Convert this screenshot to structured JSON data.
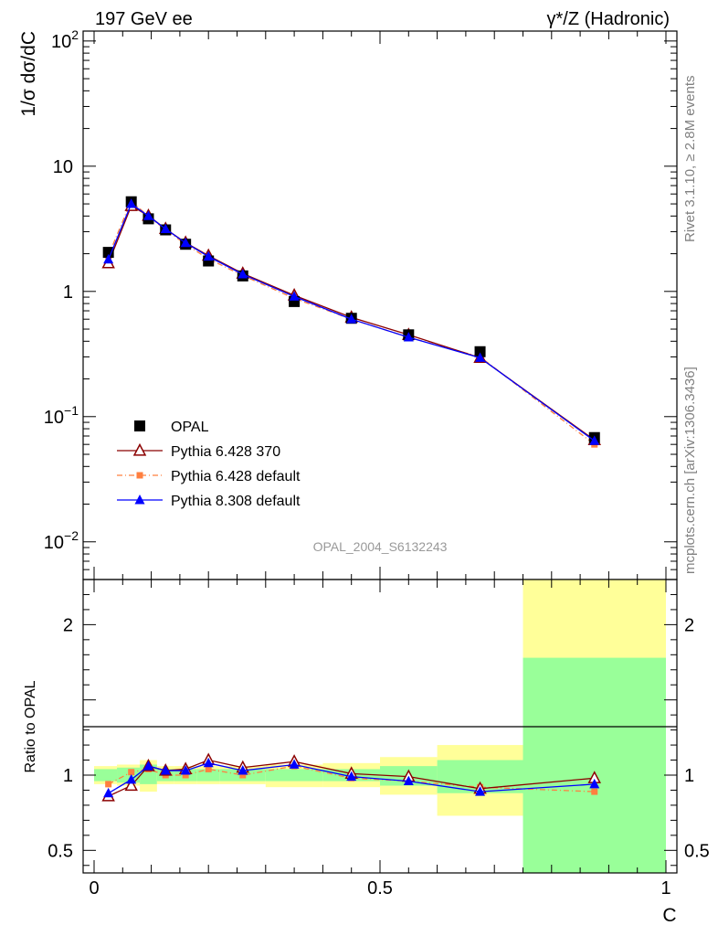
{
  "header": {
    "left_title": "197 GeV ee",
    "right_title": "γ*/Z (Hadronic)"
  },
  "side_labels": {
    "rivet": "Rivet 3.1.10, ≥ 2.8M events",
    "mcplots": "mcplots.cern.ch [arXiv:1306.3436]"
  },
  "analysis_id": "OPAL_2004_S6132243",
  "colors": {
    "opal": "#000000",
    "pythia6_370": "#8b0000",
    "pythia6_default": "#ff7f3f",
    "pythia8_default": "#0000ff",
    "band_green": "#99ff99",
    "band_yellow": "#ffff99"
  },
  "chart_data": [
    {
      "type": "line",
      "panel": "main",
      "ylabel": "1/σ dσ/dC",
      "yscale": "log",
      "xlim": [
        0,
        1
      ],
      "ylim": [
        0.005,
        120
      ],
      "y_ticks": [
        {
          "value": 100,
          "base": "10",
          "exp": "2"
        },
        {
          "value": 10,
          "base": "10",
          "exp": ""
        },
        {
          "value": 1,
          "base": "1",
          "exp": ""
        },
        {
          "value": 0.1,
          "base": "10",
          "exp": "−1"
        },
        {
          "value": 0.01,
          "base": "10",
          "exp": "−2"
        }
      ],
      "legend_placement": "bottom-left",
      "series": [
        {
          "name": "OPAL",
          "style": "square-marker",
          "x": [
            0.025,
            0.065,
            0.095,
            0.125,
            0.16,
            0.2,
            0.26,
            0.35,
            0.45,
            0.55,
            0.675,
            0.875
          ],
          "y": [
            2.05,
            5.2,
            3.8,
            3.1,
            2.38,
            1.75,
            1.33,
            0.83,
            0.61,
            0.45,
            0.33,
            0.068
          ]
        },
        {
          "name": "Pythia 6.428 370",
          "style": "open-triangle",
          "x": [
            0.025,
            0.065,
            0.095,
            0.125,
            0.16,
            0.2,
            0.26,
            0.35,
            0.45,
            0.55,
            0.675,
            0.875
          ],
          "y": [
            1.68,
            4.82,
            4.02,
            3.16,
            2.45,
            1.93,
            1.39,
            0.93,
            0.62,
            0.45,
            0.295,
            0.065
          ]
        },
        {
          "name": "Pythia 6.428 default",
          "style": "small-square-dashdot",
          "x": [
            0.025,
            0.065,
            0.095,
            0.125,
            0.16,
            0.2,
            0.26,
            0.35,
            0.45,
            0.55,
            0.675,
            0.875
          ],
          "y": [
            1.93,
            5.3,
            3.96,
            3.11,
            2.38,
            1.82,
            1.34,
            0.88,
            0.6,
            0.43,
            0.3,
            0.06
          ]
        },
        {
          "name": "Pythia 8.308 default",
          "style": "filled-triangle",
          "x": [
            0.025,
            0.065,
            0.095,
            0.125,
            0.16,
            0.2,
            0.26,
            0.35,
            0.45,
            0.55,
            0.675,
            0.875
          ],
          "y": [
            1.8,
            5.0,
            4.0,
            3.15,
            2.44,
            1.9,
            1.37,
            0.91,
            0.6,
            0.43,
            0.295,
            0.064
          ]
        }
      ]
    },
    {
      "type": "line",
      "panel": "ratio",
      "ylabel": "Ratio to OPAL",
      "xlabel": "C",
      "xlim": [
        0,
        1
      ],
      "ylim": [
        0.35,
        2.3
      ],
      "x_ticks": [
        {
          "value": 0,
          "label": "0"
        },
        {
          "value": 0.5,
          "label": "0.5"
        },
        {
          "value": 1,
          "label": "1"
        }
      ],
      "y_ticks": [
        {
          "value": 0.5,
          "label": "0.5"
        },
        {
          "value": 1,
          "label": "1"
        },
        {
          "value": 2,
          "label": "2"
        }
      ],
      "uncertainty_bands": [
        {
          "x0": 0.0,
          "x1": 0.04,
          "green": [
            0.96,
            1.04
          ],
          "yellow": [
            0.94,
            1.06
          ]
        },
        {
          "x0": 0.04,
          "x1": 0.08,
          "green": [
            0.95,
            1.05
          ],
          "yellow": [
            0.93,
            1.07
          ]
        },
        {
          "x0": 0.08,
          "x1": 0.11,
          "green": [
            0.94,
            1.07
          ],
          "yellow": [
            0.89,
            1.1
          ]
        },
        {
          "x0": 0.11,
          "x1": 0.14,
          "green": [
            0.96,
            1.04
          ],
          "yellow": [
            0.94,
            1.06
          ]
        },
        {
          "x0": 0.14,
          "x1": 0.18,
          "green": [
            0.96,
            1.04
          ],
          "yellow": [
            0.94,
            1.06
          ]
        },
        {
          "x0": 0.18,
          "x1": 0.22,
          "green": [
            0.96,
            1.04
          ],
          "yellow": [
            0.94,
            1.06
          ]
        },
        {
          "x0": 0.22,
          "x1": 0.3,
          "green": [
            0.96,
            1.04
          ],
          "yellow": [
            0.94,
            1.06
          ]
        },
        {
          "x0": 0.3,
          "x1": 0.4,
          "green": [
            0.96,
            1.04
          ],
          "yellow": [
            0.92,
            1.07
          ]
        },
        {
          "x0": 0.4,
          "x1": 0.5,
          "green": [
            0.96,
            1.04
          ],
          "yellow": [
            0.92,
            1.08
          ]
        },
        {
          "x0": 0.5,
          "x1": 0.6,
          "green": [
            0.93,
            1.06
          ],
          "yellow": [
            0.87,
            1.12
          ]
        },
        {
          "x0": 0.6,
          "x1": 0.75,
          "green": [
            0.88,
            1.1
          ],
          "yellow": [
            0.73,
            1.2
          ]
        },
        {
          "x0": 0.75,
          "x1": 1.0,
          "green": [
            0.35,
            1.78
          ],
          "yellow": [
            0.35,
            2.3
          ]
        }
      ],
      "series": [
        {
          "name": "Pythia 6.428 370",
          "x": [
            0.025,
            0.065,
            0.095,
            0.125,
            0.16,
            0.2,
            0.26,
            0.35,
            0.45,
            0.55,
            0.675,
            0.875
          ],
          "y": [
            0.86,
            0.93,
            1.06,
            1.03,
            1.04,
            1.1,
            1.05,
            1.09,
            1.01,
            0.99,
            0.91,
            0.98
          ]
        },
        {
          "name": "Pythia 6.428 default",
          "x": [
            0.025,
            0.065,
            0.095,
            0.125,
            0.16,
            0.2,
            0.26,
            0.35,
            0.45,
            0.55,
            0.675,
            0.875
          ],
          "y": [
            0.94,
            1.02,
            1.04,
            1.0,
            1.0,
            1.04,
            1.0,
            1.06,
            0.98,
            0.96,
            0.92,
            0.89
          ]
        },
        {
          "name": "Pythia 8.308 default",
          "x": [
            0.025,
            0.065,
            0.095,
            0.125,
            0.16,
            0.2,
            0.26,
            0.35,
            0.45,
            0.55,
            0.675,
            0.875
          ],
          "y": [
            0.88,
            0.97,
            1.06,
            1.03,
            1.03,
            1.08,
            1.03,
            1.07,
            0.99,
            0.96,
            0.89,
            0.94
          ]
        }
      ]
    }
  ]
}
